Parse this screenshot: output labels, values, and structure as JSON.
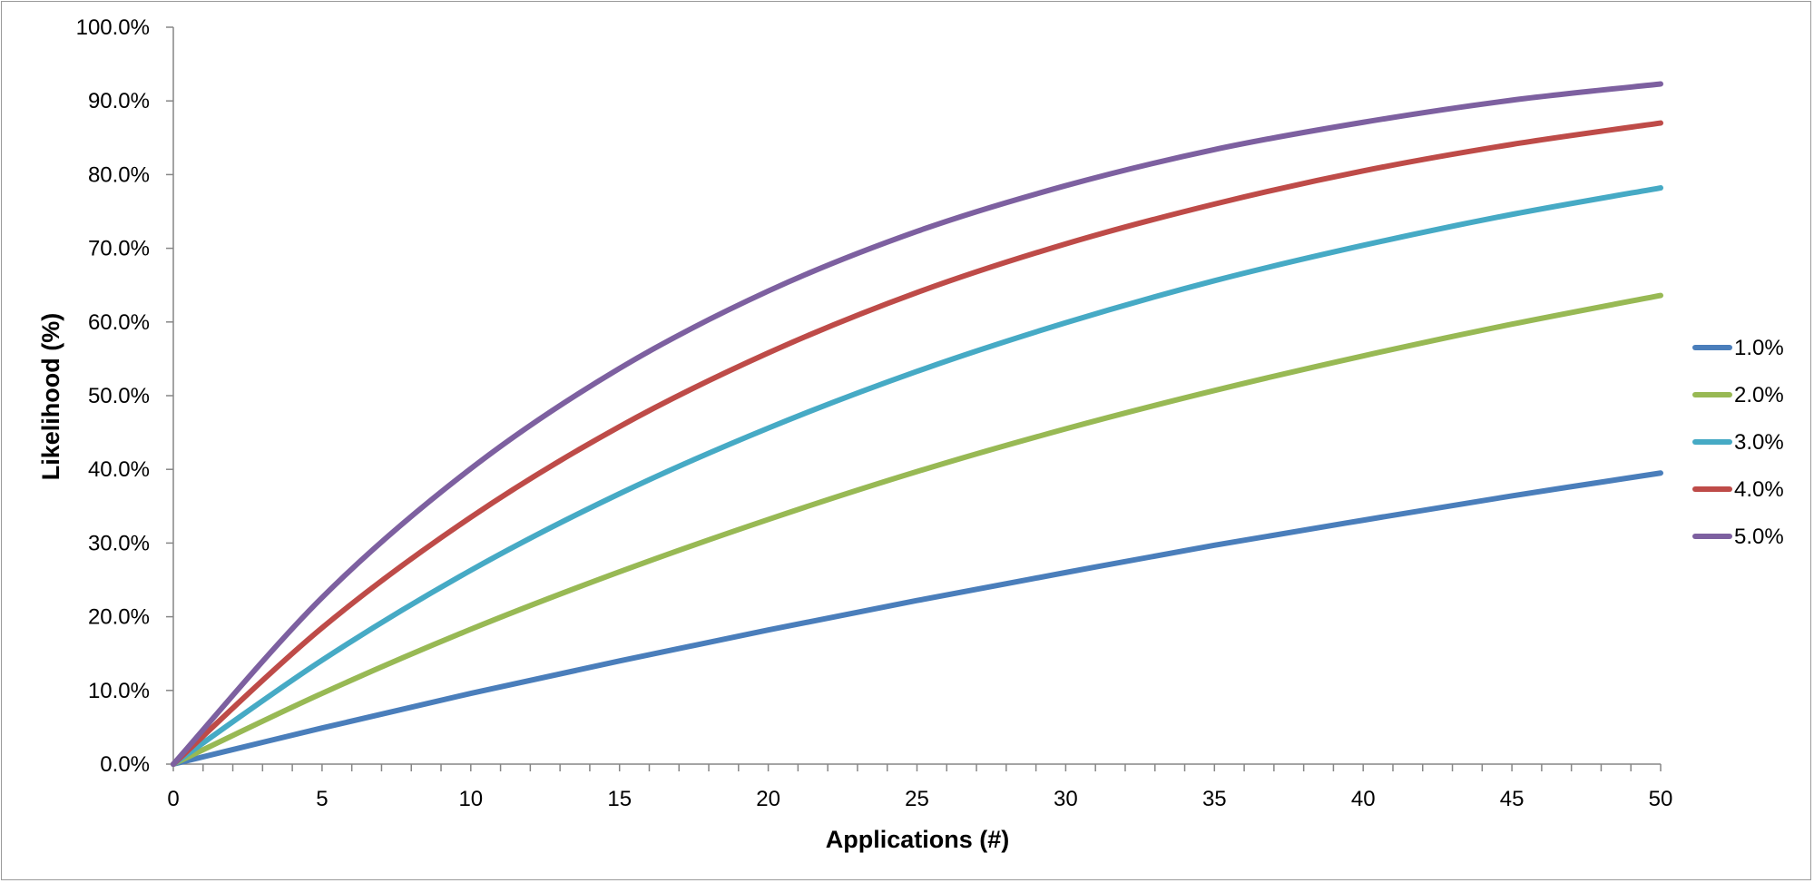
{
  "chart_data": {
    "type": "line",
    "xlabel": "Applications (#)",
    "ylabel": "Likelihood (%)",
    "xlim": [
      0,
      50
    ],
    "ylim": [
      0,
      100
    ],
    "x_ticks": [
      "0",
      "5",
      "10",
      "15",
      "20",
      "25",
      "30",
      "35",
      "40",
      "45",
      "50"
    ],
    "y_ticks": [
      "0.0%",
      "10.0%",
      "20.0%",
      "30.0%",
      "40.0%",
      "50.0%",
      "60.0%",
      "70.0%",
      "80.0%",
      "90.0%",
      "100.0%"
    ],
    "grid": false,
    "legend_position": "right",
    "x": [
      0,
      5,
      10,
      15,
      20,
      25,
      30,
      35,
      40,
      45,
      50
    ],
    "series": [
      {
        "name": "1.0%",
        "color": "#4a7ebb",
        "values": [
          0.0,
          4.9,
          9.6,
          14.0,
          18.2,
          22.2,
          26.0,
          29.7,
          33.1,
          36.4,
          39.5
        ]
      },
      {
        "name": "2.0%",
        "color": "#98b954",
        "values": [
          0.0,
          9.6,
          18.3,
          26.1,
          33.2,
          39.7,
          45.5,
          50.7,
          55.4,
          59.7,
          63.6
        ]
      },
      {
        "name": "3.0%",
        "color": "#46aac5",
        "values": [
          0.0,
          14.1,
          26.3,
          36.7,
          45.6,
          53.3,
          59.9,
          65.6,
          70.4,
          74.6,
          78.2
        ]
      },
      {
        "name": "4.0%",
        "color": "#be4b48",
        "values": [
          0.0,
          18.5,
          33.5,
          45.8,
          55.8,
          64.0,
          70.6,
          76.0,
          80.5,
          84.1,
          87.0
        ]
      },
      {
        "name": "5.0%",
        "color": "#7d60a0",
        "values": [
          0.0,
          22.6,
          40.1,
          53.7,
          64.2,
          72.3,
          78.5,
          83.4,
          87.1,
          90.1,
          92.3
        ]
      }
    ]
  }
}
